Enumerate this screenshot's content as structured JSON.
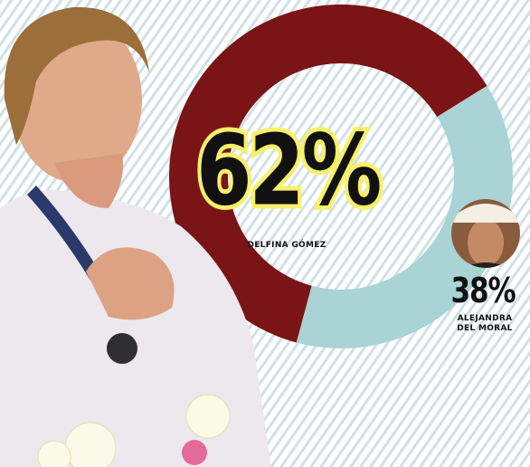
{
  "chart_data": {
    "type": "donut",
    "categories": [
      "DELFINA GÓMEZ",
      "ALEJANDRA DEL MORAL"
    ],
    "values": [
      62,
      38
    ],
    "value_labels": [
      "62%",
      "38%"
    ],
    "colors": [
      "#7a1416",
      "#a9d3d4"
    ]
  }
}
